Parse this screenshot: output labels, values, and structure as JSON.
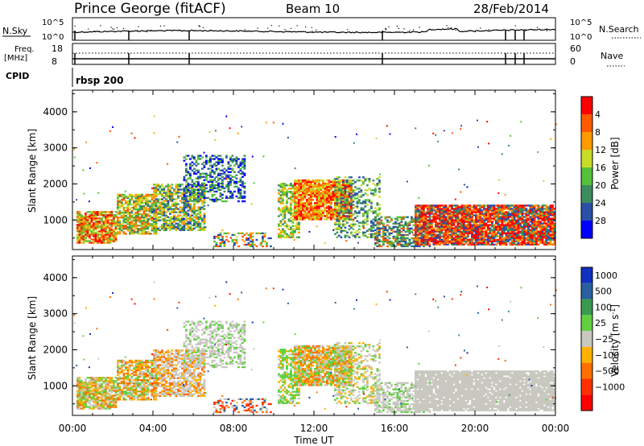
{
  "header": {
    "station": "Prince George (fitACF)",
    "beam": "Beam 10",
    "date": "28/Feb/2014"
  },
  "top_panels": {
    "nsky_label": "N.Sky",
    "nsky_ticks": [
      "10^5",
      "10^0"
    ],
    "nsearch_label": "N.Search",
    "nsearch_ticks": [
      "10^5",
      "10^0"
    ],
    "freq_label": "Freq.",
    "freq_unit": "[MHz]",
    "freq_ticks": [
      "18",
      "8"
    ],
    "nave_label": "Nave",
    "nave_ticks": [
      "60",
      "0"
    ],
    "cpid_label": "CPID",
    "cpid_name": "rbsp 200"
  },
  "chart_data": [
    {
      "type": "heatmap",
      "name": "power",
      "ylabel": "Slant Range [km]",
      "ylim": [
        180,
        4600
      ],
      "yticks": [
        "1000",
        "2000",
        "3000",
        "4000"
      ],
      "xlim_hours": [
        0,
        24
      ],
      "colorbar_label": "Power [dB]",
      "colorbar_ticks": [
        "4",
        "8",
        "12",
        "16",
        "20",
        "24",
        "28"
      ],
      "colorbar_colors": [
        "#0000ff",
        "#2a4fa8",
        "#3d8b5f",
        "#55c03a",
        "#c8dc28",
        "#ff9a00",
        "#ff5a00",
        "#ff0000"
      ]
    },
    {
      "type": "heatmap",
      "name": "velocity",
      "ylabel": "Slant Range [km]",
      "ylim": [
        180,
        4600
      ],
      "yticks": [
        "1000",
        "2000",
        "3000",
        "4000"
      ],
      "xlim_hours": [
        0,
        24
      ],
      "colorbar_label": "Velocity [m s",
      "colorbar_exp": "-1",
      "colorbar_label_end": "]",
      "colorbar_ticks": [
        "1000",
        "500",
        "100",
        "25",
        "−25",
        "−100",
        "−500",
        "−1000"
      ],
      "colorbar_colors": [
        "#1030c0",
        "#2a60a0",
        "#3a9a50",
        "#60d040",
        "#c8c8c0",
        "#ffb000",
        "#ff7000",
        "#ff3000",
        "#ff0000"
      ]
    }
  ],
  "xaxis": {
    "ticks": [
      "00:00",
      "04:00",
      "08:00",
      "12:00",
      "16:00",
      "20:00",
      "00:00"
    ],
    "label": "Time UT"
  }
}
